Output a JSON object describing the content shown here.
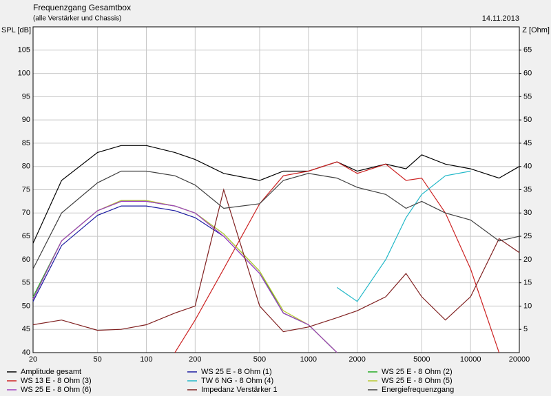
{
  "chart_data": {
    "type": "line",
    "title": "Frequenzgang Gesamtbox",
    "subtitle": "(alle Verstärker und Chassis)",
    "date": "14.11.2013",
    "ylabel": "SPL [dB]",
    "y2label": "Z [Ohm]",
    "log_x": true,
    "grid": true,
    "legend": "bottom",
    "x": [
      20,
      30,
      50,
      70,
      100,
      150,
      200,
      300,
      500,
      700,
      1000,
      1500,
      2000,
      3000,
      4000,
      5000,
      7000,
      10000,
      15000,
      20000
    ],
    "xlim": [
      20,
      20000
    ],
    "xticks": [
      20,
      50,
      100,
      200,
      500,
      1000,
      2000,
      5000,
      10000,
      20000
    ],
    "ylim": [
      40,
      110
    ],
    "yticks": [
      40,
      45,
      50,
      55,
      60,
      65,
      70,
      75,
      80,
      85,
      90,
      95,
      100,
      105
    ],
    "y2lim": [
      0,
      70
    ],
    "y2ticks": [
      5,
      10,
      15,
      20,
      25,
      30,
      35,
      40,
      45,
      50,
      55,
      60,
      65
    ],
    "series": [
      {
        "name": "Amplitude gesamt",
        "color": "#000000",
        "values": [
          63.5,
          77,
          83,
          84.5,
          84.5,
          83,
          81.5,
          78.5,
          77,
          79,
          79,
          81,
          79,
          80.5,
          79.5,
          82.5,
          80.5,
          79.5,
          77.5,
          80
        ]
      },
      {
        "name": "WS 25 E - 8 Ohm (1)",
        "color": "#1a1aa0",
        "values": [
          51,
          63,
          69.5,
          71.5,
          71.5,
          70.5,
          69,
          65,
          57,
          48.5,
          46,
          40,
          null,
          null,
          null,
          null,
          null,
          null,
          null,
          null
        ]
      },
      {
        "name": "WS 25 E - 8 Ohm (2)",
        "color": "#22aa22",
        "values": [
          52,
          64,
          70.5,
          72.5,
          72.5,
          71.5,
          70,
          65.5,
          57.5,
          48.5,
          46,
          40,
          null,
          null,
          null,
          null,
          null,
          null,
          null,
          null
        ]
      },
      {
        "name": "WS 13 E - 8 Ohm (3)",
        "color": "#cc2222",
        "values": [
          null,
          null,
          null,
          null,
          null,
          40,
          47,
          58,
          72,
          78,
          79,
          81,
          78.5,
          80.5,
          77,
          77.5,
          70,
          58,
          40,
          null
        ]
      },
      {
        "name": "TW 6 NG - 8 Ohm (4)",
        "color": "#22b8c8",
        "values": [
          null,
          null,
          null,
          null,
          null,
          null,
          null,
          null,
          null,
          null,
          null,
          54,
          51,
          60,
          69,
          74,
          78,
          79,
          null,
          null
        ]
      },
      {
        "name": "WS 25 E - 8 Ohm (5)",
        "color": "#b8c830",
        "values": [
          51.5,
          64,
          70.5,
          72.7,
          72.7,
          71.5,
          70,
          65.5,
          57.5,
          49,
          46,
          40,
          null,
          null,
          null,
          null,
          null,
          null,
          null,
          null
        ]
      },
      {
        "name": "WS 25 E - 8 Ohm (6)",
        "color": "#a040c0",
        "values": [
          51.5,
          64,
          70.5,
          72.5,
          72.5,
          71.5,
          70,
          65,
          57,
          48.5,
          46,
          40,
          null,
          null,
          null,
          null,
          null,
          null,
          null,
          null
        ]
      },
      {
        "name": "Impedanz Verstärker 1",
        "color": "#802020",
        "axis": "y2",
        "values": [
          6,
          7,
          4.8,
          5,
          6,
          8.5,
          10,
          35,
          10,
          4.5,
          5.5,
          7.5,
          9,
          12,
          17,
          12,
          7,
          12,
          24.5,
          21.5
        ]
      },
      {
        "name": "Energiefrequenzgang",
        "color": "#404040",
        "values": [
          58,
          70,
          76.5,
          79,
          79,
          78,
          76,
          71,
          72,
          77,
          78.5,
          77.5,
          75.5,
          74,
          71,
          72.5,
          70,
          68.5,
          64,
          65
        ]
      }
    ]
  }
}
